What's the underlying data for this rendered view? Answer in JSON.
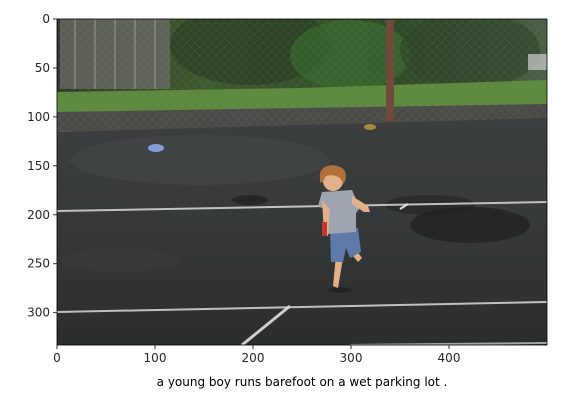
{
  "figure": {
    "caption": "a young boy runs barefoot on a wet parking lot .",
    "image_extent": {
      "x": [
        0,
        500
      ],
      "y": [
        333,
        0
      ]
    },
    "x_ticks": [
      0,
      100,
      200,
      300,
      400
    ],
    "y_ticks": [
      0,
      50,
      100,
      150,
      200,
      250,
      300
    ],
    "colors": {
      "asphalt": "#2f3132",
      "wet_sheen": "#4c4f51",
      "foliage": "#3d5a2f",
      "grass": "#5c8a3e",
      "fence": "#6f6f6f",
      "court_line": "#d9d9d9",
      "shirt": "#9ea4b0",
      "jeans": "#5d7aa8",
      "hair": "#b0703a",
      "skin": "#e3b08c"
    }
  }
}
